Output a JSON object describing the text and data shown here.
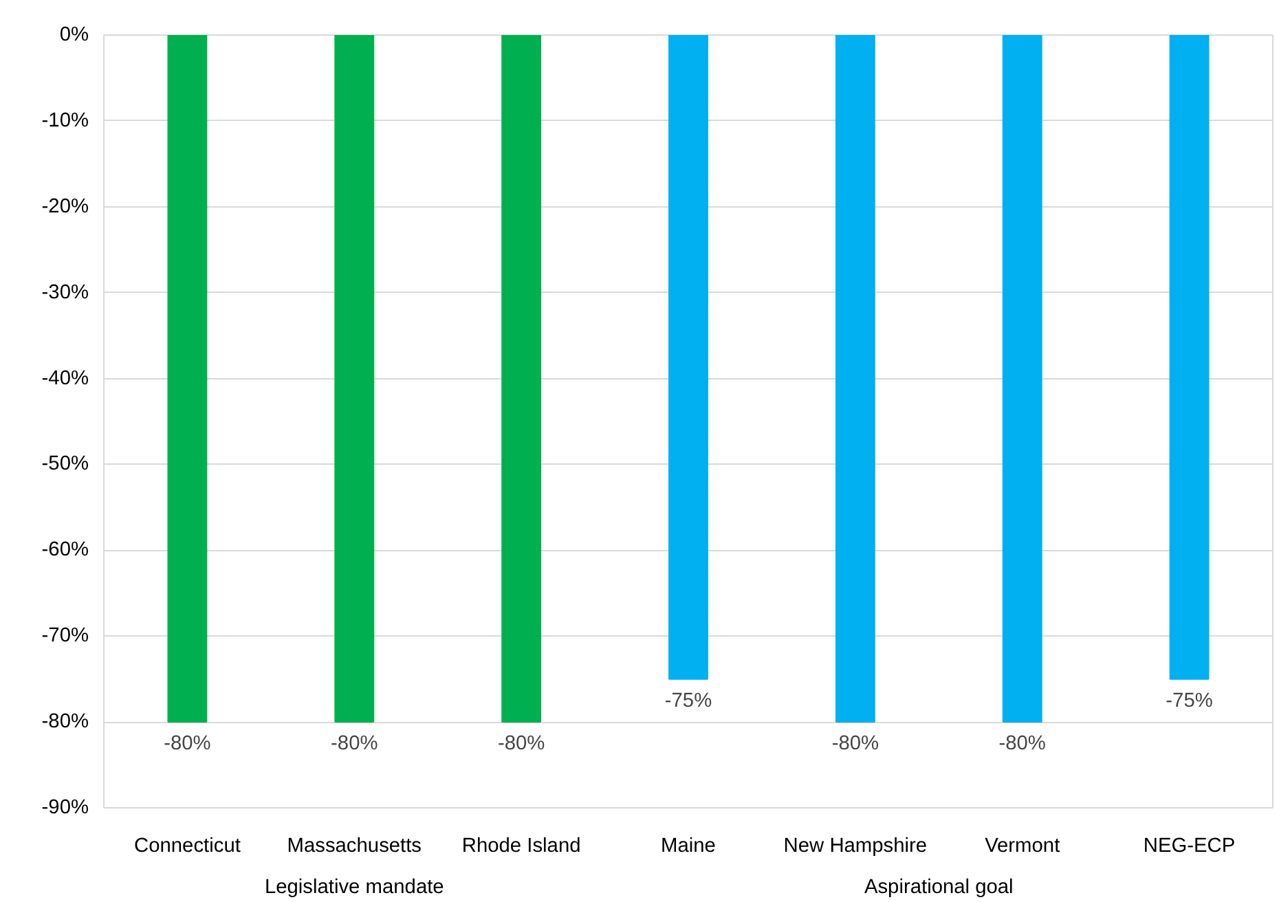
{
  "chart_data": {
    "type": "bar",
    "categories": [
      "Connecticut",
      "Massachusetts",
      "Rhode Island",
      "Maine",
      "New Hampshire",
      "Vermont",
      "NEG-ECP"
    ],
    "series": [
      {
        "color": "#00b050",
        "values": [
          -80,
          -80,
          -80,
          null,
          null,
          null,
          null
        ],
        "value_labels": [
          "-80%",
          "-80%",
          "-80%",
          null,
          null,
          null,
          null
        ]
      },
      {
        "color": "#00b0f0",
        "values": [
          null,
          null,
          null,
          -75,
          -80,
          -80,
          -75
        ],
        "value_labels": [
          null,
          null,
          null,
          "-75%",
          "-80%",
          "-80%",
          "-75%"
        ]
      }
    ],
    "ylim": [
      -90,
      0
    ],
    "yticks": [
      {
        "value": 0,
        "label": "0%"
      },
      {
        "value": -10,
        "label": "-10%"
      },
      {
        "value": -20,
        "label": "-20%"
      },
      {
        "value": -30,
        "label": "-30%"
      },
      {
        "value": -40,
        "label": "-40%"
      },
      {
        "value": -50,
        "label": "-50%"
      },
      {
        "value": -60,
        "label": "-60%"
      },
      {
        "value": -70,
        "label": "-70%"
      },
      {
        "value": -80,
        "label": "-80%"
      },
      {
        "value": -90,
        "label": "-90%"
      }
    ],
    "grid": "y",
    "annotations": [
      "Legislative mandate",
      "Aspirational goal"
    ]
  }
}
